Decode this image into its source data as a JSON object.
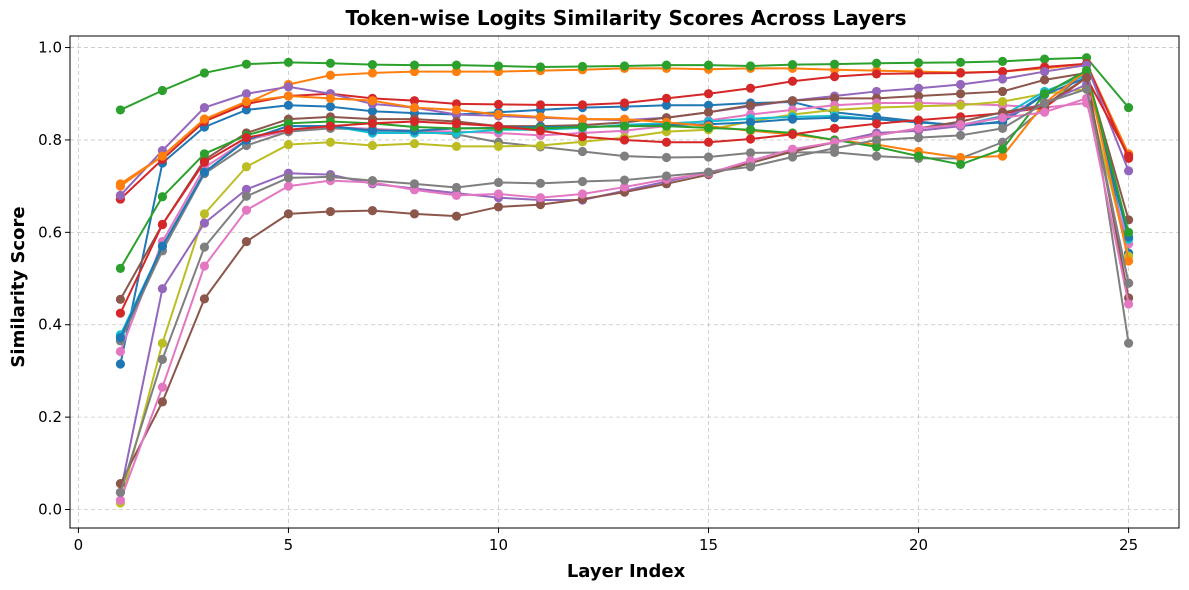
{
  "chart_data": {
    "type": "line",
    "title": "Token-wise Logits Similarity Scores Across Layers",
    "xlabel": "Layer Index",
    "ylabel": "Similarity Score",
    "xlim": [
      -0.2,
      26.2
    ],
    "ylim": [
      -0.04,
      1.025
    ],
    "xticks": [
      0,
      5,
      10,
      15,
      20,
      25
    ],
    "xtick_labels": [
      "0",
      "5",
      "10",
      "15",
      "20",
      "25"
    ],
    "yticks": [
      0.0,
      0.2,
      0.4,
      0.6,
      0.8,
      1.0
    ],
    "ytick_labels": [
      "0.0",
      "0.2",
      "0.4",
      "0.6",
      "0.8",
      "1.0"
    ],
    "grid": true,
    "x": [
      1,
      2,
      3,
      4,
      5,
      6,
      7,
      8,
      9,
      10,
      11,
      12,
      13,
      14,
      15,
      16,
      17,
      18,
      19,
      20,
      21,
      22,
      23,
      24,
      25
    ],
    "series": [
      {
        "color": "#1f77b4",
        "values": [
          0.315,
          0.75,
          0.828,
          0.865,
          0.875,
          0.872,
          0.862,
          0.858,
          0.855,
          0.86,
          0.865,
          0.87,
          0.872,
          0.875,
          0.875,
          0.88,
          0.882,
          0.86,
          0.85,
          0.84,
          0.83,
          0.84,
          0.9,
          0.95,
          0.555
        ]
      },
      {
        "color": "#ff7f0e",
        "values": [
          0.705,
          0.765,
          0.845,
          0.88,
          0.92,
          0.94,
          0.945,
          0.948,
          0.948,
          0.948,
          0.95,
          0.952,
          0.955,
          0.955,
          0.953,
          0.955,
          0.955,
          0.952,
          0.95,
          0.948,
          0.946,
          0.948,
          0.955,
          0.965,
          0.77
        ]
      },
      {
        "color": "#2ca02c",
        "values": [
          0.865,
          0.907,
          0.945,
          0.964,
          0.968,
          0.966,
          0.963,
          0.962,
          0.962,
          0.96,
          0.958,
          0.959,
          0.96,
          0.962,
          0.962,
          0.96,
          0.963,
          0.964,
          0.966,
          0.967,
          0.968,
          0.97,
          0.975,
          0.978,
          0.87
        ]
      },
      {
        "color": "#d62728",
        "values": [
          0.672,
          0.758,
          0.84,
          0.878,
          0.895,
          0.9,
          0.89,
          0.885,
          0.878,
          0.877,
          0.876,
          0.876,
          0.88,
          0.89,
          0.9,
          0.912,
          0.927,
          0.937,
          0.943,
          0.944,
          0.945,
          0.948,
          0.958,
          0.965,
          0.76
        ]
      },
      {
        "color": "#9467bd",
        "values": [
          0.68,
          0.777,
          0.87,
          0.9,
          0.915,
          0.9,
          0.878,
          0.87,
          0.855,
          0.852,
          0.848,
          0.845,
          0.843,
          0.848,
          0.86,
          0.873,
          0.885,
          0.895,
          0.905,
          0.912,
          0.92,
          0.932,
          0.948,
          0.962,
          0.733
        ]
      },
      {
        "color": "#8c564b",
        "values": [
          0.455,
          0.617,
          0.757,
          0.815,
          0.845,
          0.85,
          0.845,
          0.845,
          0.84,
          0.83,
          0.83,
          0.832,
          0.838,
          0.848,
          0.86,
          0.875,
          0.885,
          0.89,
          0.89,
          0.895,
          0.9,
          0.905,
          0.93,
          0.945,
          0.627
        ]
      },
      {
        "color": "#e377c2",
        "values": [
          0.342,
          0.58,
          0.74,
          0.8,
          0.82,
          0.828,
          0.824,
          0.82,
          0.818,
          0.815,
          0.81,
          0.815,
          0.82,
          0.83,
          0.842,
          0.855,
          0.865,
          0.875,
          0.88,
          0.88,
          0.878,
          0.875,
          0.87,
          0.88,
          0.575
        ]
      },
      {
        "color": "#7f7f7f",
        "values": [
          0.365,
          0.56,
          0.727,
          0.788,
          0.818,
          0.825,
          0.822,
          0.818,
          0.812,
          0.795,
          0.785,
          0.775,
          0.765,
          0.762,
          0.763,
          0.772,
          0.773,
          0.773,
          0.765,
          0.76,
          0.76,
          0.795,
          0.87,
          0.95,
          0.36
        ]
      },
      {
        "color": "#bcbd22",
        "values": [
          0.014,
          0.36,
          0.64,
          0.742,
          0.79,
          0.795,
          0.788,
          0.792,
          0.786,
          0.786,
          0.788,
          0.796,
          0.805,
          0.818,
          0.822,
          0.84,
          0.855,
          0.865,
          0.87,
          0.873,
          0.875,
          0.883,
          0.9,
          0.91,
          0.548
        ]
      },
      {
        "color": "#17becf",
        "values": [
          0.378,
          0.57,
          0.73,
          0.8,
          0.83,
          0.83,
          0.815,
          0.815,
          0.815,
          0.822,
          0.822,
          0.826,
          0.833,
          0.836,
          0.84,
          0.846,
          0.85,
          0.852,
          0.845,
          0.838,
          0.832,
          0.852,
          0.905,
          0.94,
          0.585
        ]
      },
      {
        "color": "#1f77b4",
        "values": [
          0.372,
          0.57,
          0.73,
          0.8,
          0.83,
          0.83,
          0.82,
          0.82,
          0.825,
          0.826,
          0.828,
          0.828,
          0.83,
          0.832,
          0.834,
          0.838,
          0.845,
          0.848,
          0.845,
          0.838,
          0.832,
          0.838,
          0.898,
          0.935,
          0.59
        ]
      },
      {
        "color": "#ff7f0e",
        "values": [
          0.7,
          0.765,
          0.845,
          0.883,
          0.895,
          0.89,
          0.885,
          0.87,
          0.865,
          0.855,
          0.85,
          0.845,
          0.845,
          0.838,
          0.83,
          0.82,
          0.812,
          0.8,
          0.79,
          0.775,
          0.762,
          0.765,
          0.88,
          0.95,
          0.538
        ]
      },
      {
        "color": "#2ca02c",
        "values": [
          0.522,
          0.677,
          0.77,
          0.81,
          0.836,
          0.84,
          0.836,
          0.828,
          0.825,
          0.825,
          0.825,
          0.828,
          0.83,
          0.83,
          0.826,
          0.822,
          0.815,
          0.8,
          0.785,
          0.765,
          0.747,
          0.78,
          0.9,
          0.95,
          0.6
        ]
      },
      {
        "color": "#d62728",
        "values": [
          0.425,
          0.617,
          0.752,
          0.805,
          0.822,
          0.83,
          0.836,
          0.84,
          0.835,
          0.83,
          0.82,
          0.807,
          0.8,
          0.795,
          0.795,
          0.802,
          0.812,
          0.825,
          0.835,
          0.843,
          0.85,
          0.858,
          0.87,
          0.935,
          0.765
        ]
      },
      {
        "color": "#9467bd",
        "values": [
          0.037,
          0.478,
          0.62,
          0.693,
          0.728,
          0.725,
          0.705,
          0.695,
          0.685,
          0.675,
          0.67,
          0.67,
          0.69,
          0.71,
          0.73,
          0.75,
          0.775,
          0.795,
          0.815,
          0.82,
          0.83,
          0.85,
          0.88,
          0.92,
          0.49
        ]
      },
      {
        "color": "#8c564b",
        "values": [
          0.056,
          0.233,
          0.456,
          0.58,
          0.64,
          0.645,
          0.647,
          0.64,
          0.635,
          0.655,
          0.66,
          0.672,
          0.687,
          0.705,
          0.725,
          0.75,
          0.775,
          0.795,
          0.81,
          0.825,
          0.84,
          0.86,
          0.875,
          0.935,
          0.458
        ]
      },
      {
        "color": "#e377c2",
        "values": [
          0.02,
          0.265,
          0.527,
          0.648,
          0.7,
          0.712,
          0.708,
          0.692,
          0.68,
          0.683,
          0.675,
          0.683,
          0.698,
          0.715,
          0.728,
          0.755,
          0.78,
          0.795,
          0.81,
          0.825,
          0.833,
          0.848,
          0.86,
          0.89,
          0.445
        ]
      },
      {
        "color": "#7f7f7f",
        "values": [
          0.037,
          0.325,
          0.568,
          0.678,
          0.718,
          0.72,
          0.712,
          0.705,
          0.697,
          0.708,
          0.706,
          0.71,
          0.713,
          0.722,
          0.73,
          0.742,
          0.763,
          0.782,
          0.8,
          0.805,
          0.81,
          0.825,
          0.88,
          0.91,
          0.49
        ]
      }
    ]
  }
}
